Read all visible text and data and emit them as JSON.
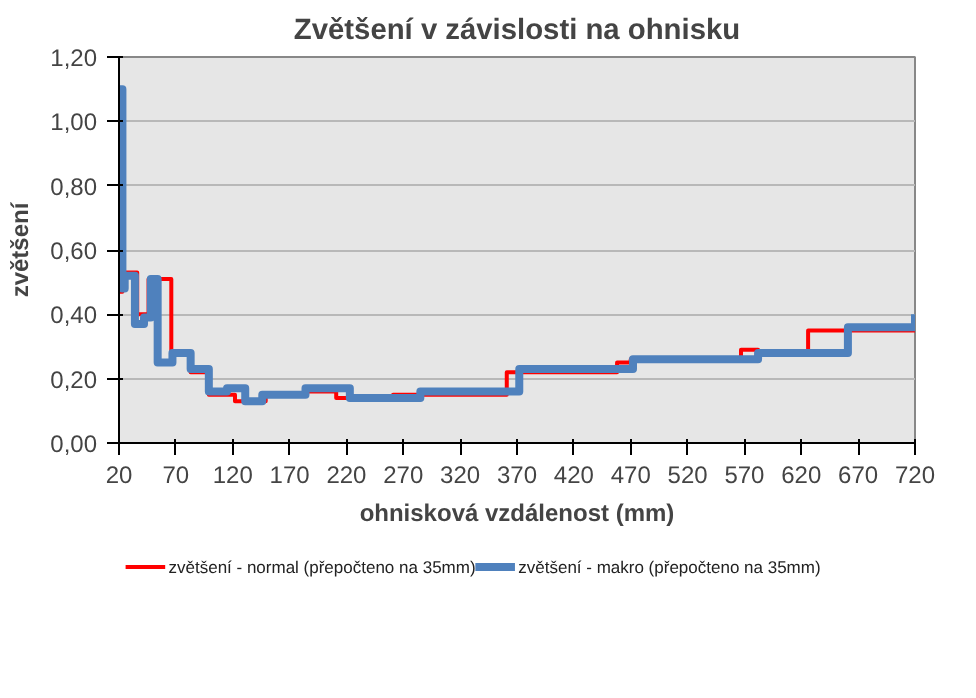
{
  "chart_data": {
    "type": "step",
    "title": "Zvětšení v závislosti na ohnisku",
    "xlabel": "ohnisková vzdálenost (mm)",
    "ylabel": "zvětšení",
    "series": [
      {
        "name": "zvětšení - normal (přepočteno na 35mm)",
        "color": "#ff0000",
        "x": [
          20,
          23,
          36,
          46,
          66,
          83,
          99,
          122,
          149,
          184,
          211,
          261,
          361,
          458,
          470,
          567,
          582,
          626,
          720
        ],
        "values": [
          0.47,
          0.53,
          0.4,
          0.51,
          0.28,
          0.22,
          0.15,
          0.13,
          0.15,
          0.16,
          0.14,
          0.15,
          0.22,
          0.25,
          0.26,
          0.29,
          0.28,
          0.35,
          0.35
        ]
      },
      {
        "name": "zvětšení - makro (přepočteno na 35mm)",
        "color": "#4f81bd",
        "x": [
          20,
          23,
          25,
          34,
          42,
          48,
          54,
          67,
          83,
          99,
          115,
          131,
          146,
          184,
          223,
          285,
          372,
          472,
          582,
          661,
          718,
          720
        ],
        "values": [
          1.1,
          0.48,
          0.52,
          0.37,
          0.39,
          0.51,
          0.25,
          0.28,
          0.23,
          0.16,
          0.17,
          0.13,
          0.15,
          0.17,
          0.14,
          0.16,
          0.23,
          0.26,
          0.28,
          0.36,
          0.36,
          0.4
        ]
      }
    ],
    "xlim": [
      20,
      720
    ],
    "xticks": [
      20,
      70,
      120,
      170,
      220,
      270,
      320,
      370,
      420,
      470,
      520,
      570,
      620,
      670,
      720
    ],
    "ylim": [
      0,
      1.2
    ],
    "yticks": [
      {
        "value": 0,
        "label": "0,00"
      },
      {
        "value": 0.2,
        "label": "0,20"
      },
      {
        "value": 0.4,
        "label": "0,40"
      },
      {
        "value": 0.6,
        "label": "0,60"
      },
      {
        "value": 0.8,
        "label": "0,80"
      },
      {
        "value": 1.0,
        "label": "1,00"
      },
      {
        "value": 1.2,
        "label": "1,20"
      }
    ],
    "grid": "y",
    "legend": "bottom"
  }
}
